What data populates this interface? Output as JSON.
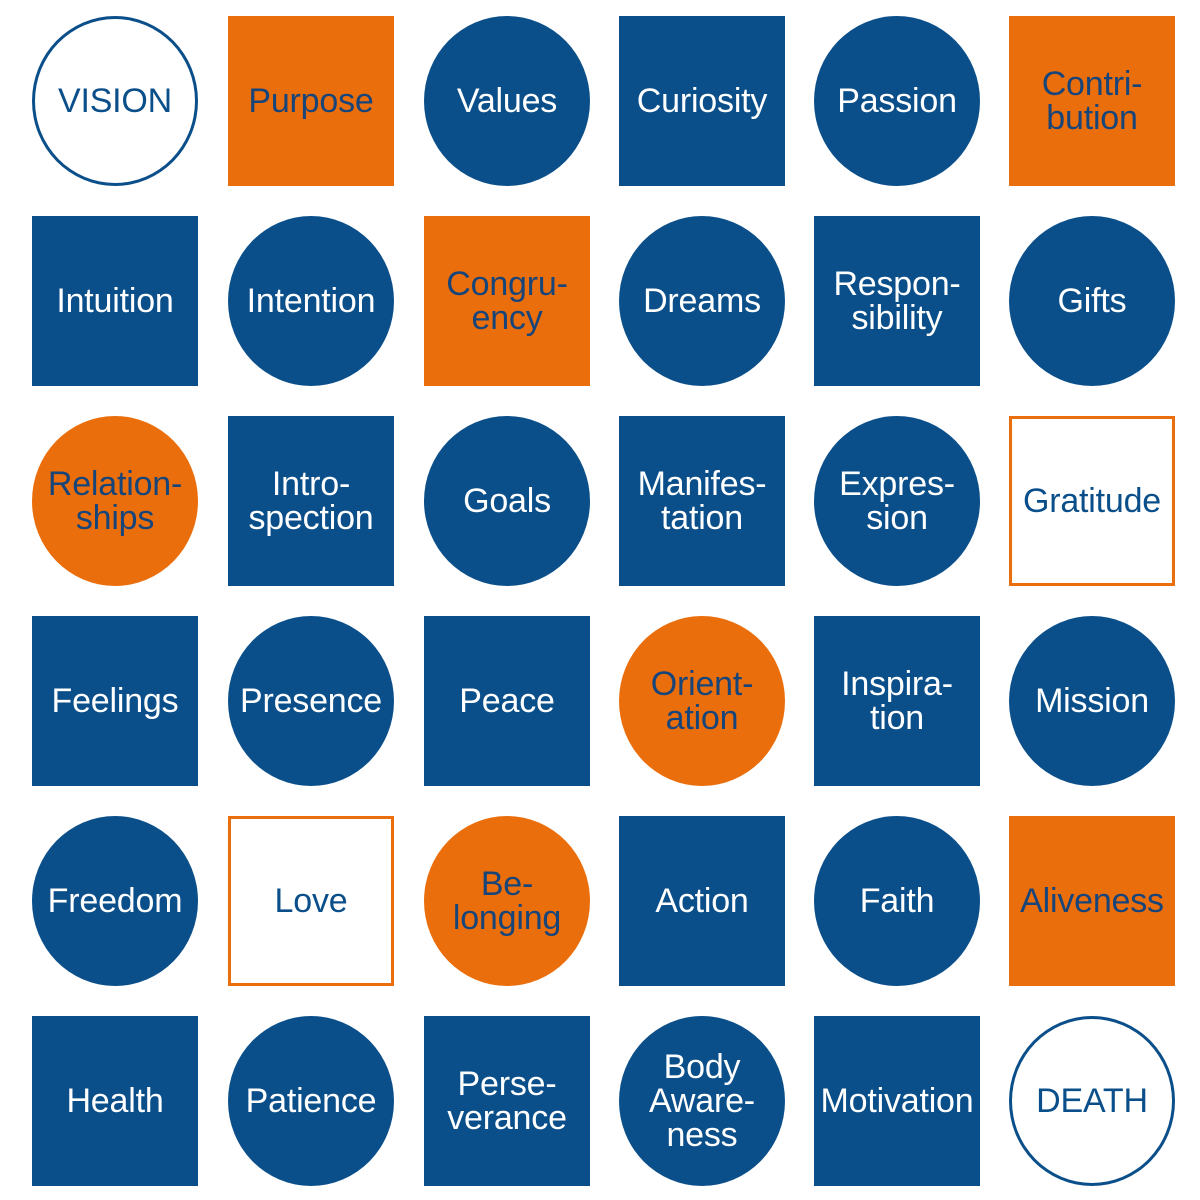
{
  "colors": {
    "blue": "#0b4f8a",
    "orange": "#eb6e0c",
    "white": "#ffffff"
  },
  "tiles": [
    {
      "label": "VISION",
      "shape": "circle",
      "style": "outline-blue"
    },
    {
      "label": "Purpose",
      "shape": "square",
      "style": "orange"
    },
    {
      "label": "Values",
      "shape": "circle",
      "style": "blue"
    },
    {
      "label": "Curiosity",
      "shape": "square",
      "style": "blue"
    },
    {
      "label": "Passion",
      "shape": "circle",
      "style": "blue"
    },
    {
      "label": "Contri-\nbution",
      "shape": "square",
      "style": "orange"
    },
    {
      "label": "Intuition",
      "shape": "square",
      "style": "blue"
    },
    {
      "label": "Intention",
      "shape": "circle",
      "style": "blue"
    },
    {
      "label": "Congru-\nency",
      "shape": "square",
      "style": "orange"
    },
    {
      "label": "Dreams",
      "shape": "circle",
      "style": "blue"
    },
    {
      "label": "Respon-\nsibility",
      "shape": "square",
      "style": "blue"
    },
    {
      "label": "Gifts",
      "shape": "circle",
      "style": "blue"
    },
    {
      "label": "Relation-\nships",
      "shape": "circle",
      "style": "orange"
    },
    {
      "label": "Intro-\nspection",
      "shape": "square",
      "style": "blue"
    },
    {
      "label": "Goals",
      "shape": "circle",
      "style": "blue"
    },
    {
      "label": "Manifes-\ntation",
      "shape": "square",
      "style": "blue"
    },
    {
      "label": "Expres-\nsion",
      "shape": "circle",
      "style": "blue"
    },
    {
      "label": "Gratitude",
      "shape": "square",
      "style": "outline-orange"
    },
    {
      "label": "Feelings",
      "shape": "square",
      "style": "blue"
    },
    {
      "label": "Presence",
      "shape": "circle",
      "style": "blue"
    },
    {
      "label": "Peace",
      "shape": "square",
      "style": "blue"
    },
    {
      "label": "Orient-\nation",
      "shape": "circle",
      "style": "orange"
    },
    {
      "label": "Inspira-\ntion",
      "shape": "square",
      "style": "blue"
    },
    {
      "label": "Mission",
      "shape": "circle",
      "style": "blue"
    },
    {
      "label": "Freedom",
      "shape": "circle",
      "style": "blue"
    },
    {
      "label": "Love",
      "shape": "square",
      "style": "outline-orange"
    },
    {
      "label": "Be-\nlonging",
      "shape": "circle",
      "style": "orange"
    },
    {
      "label": "Action",
      "shape": "square",
      "style": "blue"
    },
    {
      "label": "Faith",
      "shape": "circle",
      "style": "blue"
    },
    {
      "label": "Aliveness",
      "shape": "square",
      "style": "orange"
    },
    {
      "label": "Health",
      "shape": "square",
      "style": "blue"
    },
    {
      "label": "Patience",
      "shape": "circle",
      "style": "blue"
    },
    {
      "label": "Perse-\nverance",
      "shape": "square",
      "style": "blue"
    },
    {
      "label": "Body\nAware-\nness",
      "shape": "circle",
      "style": "blue"
    },
    {
      "label": "Motivation",
      "shape": "square",
      "style": "blue"
    },
    {
      "label": "DEATH",
      "shape": "circle",
      "style": "outline-blue"
    }
  ]
}
